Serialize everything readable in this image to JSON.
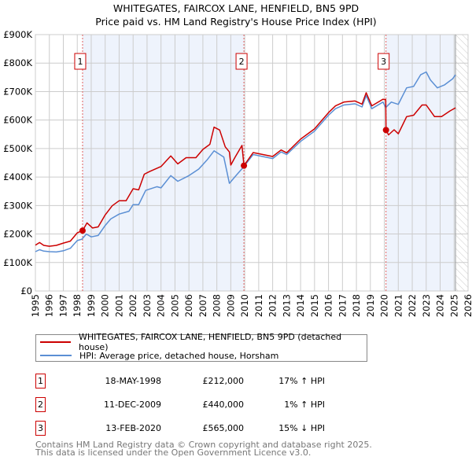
{
  "title_line1": "WHITEGATES, FAIRCOX LANE, HENFIELD, BN5 9PD",
  "title_line2": "Price paid vs. HM Land Registry's House Price Index (HPI)",
  "colors": {
    "property": "#cc0000",
    "hpi": "#5b8fd4",
    "shade": "#eef3fc",
    "grid": "#cccccc"
  },
  "legend": [
    {
      "label": "WHITEGATES, FAIRCOX LANE, HENFIELD, BN5 9PD (detached house)"
    },
    {
      "label": "HPI: Average price, detached house, Horsham"
    }
  ],
  "transactions": [
    {
      "num": "1",
      "date": "18-MAY-1998",
      "price": "£212,000",
      "hpi": "17% ↑ HPI"
    },
    {
      "num": "2",
      "date": "11-DEC-2009",
      "price": "£440,000",
      "hpi": "1% ↑ HPI"
    },
    {
      "num": "3",
      "date": "13-FEB-2020",
      "price": "£565,000",
      "hpi": "15% ↓ HPI"
    }
  ],
  "footer1": "Contains HM Land Registry data © Crown copyright and database right 2025.",
  "footer2": "This data is licensed under the Open Government Licence v3.0.",
  "chart_data": {
    "type": "line",
    "title": "WHITEGATES, FAIRCOX LANE, HENFIELD, BN5 9PD — Price paid vs. HM Land Registry's House Price Index (HPI)",
    "xlim": [
      1995,
      2026
    ],
    "ylim": [
      0,
      900000
    ],
    "x_ticks": [
      "1995",
      "1996",
      "1997",
      "1998",
      "1999",
      "2000",
      "2001",
      "2002",
      "2003",
      "2004",
      "2005",
      "2006",
      "2007",
      "2008",
      "2009",
      "2010",
      "2011",
      "2012",
      "2013",
      "2014",
      "2015",
      "2016",
      "2017",
      "2018",
      "2019",
      "2020",
      "2021",
      "2022",
      "2023",
      "2024",
      "2025",
      "2026"
    ],
    "y_ticks": [
      {
        "value": 0,
        "label": "£0"
      },
      {
        "value": 100000,
        "label": "£100K"
      },
      {
        "value": 200000,
        "label": "£200K"
      },
      {
        "value": 300000,
        "label": "£300K"
      },
      {
        "value": 400000,
        "label": "£400K"
      },
      {
        "value": 500000,
        "label": "£500K"
      },
      {
        "value": 600000,
        "label": "£600K"
      },
      {
        "value": 700000,
        "label": "£700K"
      },
      {
        "value": 800000,
        "label": "£800K"
      },
      {
        "value": 900000,
        "label": "£900K"
      }
    ],
    "grid": true,
    "shaded_periods": [
      [
        1998.38,
        2009.94
      ],
      [
        2020.12,
        2025.1
      ]
    ],
    "data_end": 2025.1,
    "sales": [
      {
        "label": "1",
        "x": 1998.38,
        "y": 212000
      },
      {
        "label": "2",
        "x": 2009.94,
        "y": 440000
      },
      {
        "label": "3",
        "x": 2020.12,
        "y": 565000
      }
    ],
    "series": [
      {
        "name": "WHITEGATES, FAIRCOX LANE, HENFIELD, BN5 9PD (detached house)",
        "color": "#cc0000",
        "points": [
          [
            1995,
            161000
          ],
          [
            1995.3,
            170000
          ],
          [
            1995.6,
            160000
          ],
          [
            1996,
            157000
          ],
          [
            1996.5,
            160000
          ],
          [
            1997,
            168000
          ],
          [
            1997.5,
            175000
          ],
          [
            1998,
            204000
          ],
          [
            1998.38,
            212000
          ],
          [
            1998.7,
            239000
          ],
          [
            1999.1,
            221000
          ],
          [
            1999.5,
            225000
          ],
          [
            2000,
            267000
          ],
          [
            2000.5,
            299000
          ],
          [
            2001,
            317000
          ],
          [
            2001.5,
            317000
          ],
          [
            2002,
            359000
          ],
          [
            2002.4,
            355000
          ],
          [
            2002.8,
            410000
          ],
          [
            2003.2,
            420000
          ],
          [
            2004,
            437000
          ],
          [
            2004.7,
            474000
          ],
          [
            2005.2,
            446000
          ],
          [
            2005.8,
            468000
          ],
          [
            2006.5,
            468000
          ],
          [
            2007,
            497000
          ],
          [
            2007.5,
            515000
          ],
          [
            2007.8,
            575000
          ],
          [
            2008.2,
            565000
          ],
          [
            2008.6,
            506000
          ],
          [
            2008.9,
            488000
          ],
          [
            2009.0,
            442000
          ],
          [
            2009.3,
            469000
          ],
          [
            2009.8,
            511000
          ],
          [
            2009.94,
            440000
          ],
          [
            2010.6,
            486000
          ],
          [
            2012,
            472000
          ],
          [
            2012.6,
            495000
          ],
          [
            2013,
            485000
          ],
          [
            2014,
            533000
          ],
          [
            2015,
            569000
          ],
          [
            2016,
            626000
          ],
          [
            2016.5,
            650000
          ],
          [
            2017.1,
            663000
          ],
          [
            2017.9,
            667000
          ],
          [
            2018.4,
            656000
          ],
          [
            2018.7,
            696000
          ],
          [
            2019.1,
            650000
          ],
          [
            2019.9,
            673000
          ],
          [
            2020.1,
            672000
          ],
          [
            2020.12,
            565000
          ],
          [
            2020.3,
            548000
          ],
          [
            2020.7,
            566000
          ],
          [
            2021,
            552000
          ],
          [
            2021.6,
            612000
          ],
          [
            2022.1,
            617000
          ],
          [
            2022.7,
            653000
          ],
          [
            2023,
            653000
          ],
          [
            2023.6,
            612000
          ],
          [
            2024.1,
            612000
          ],
          [
            2024.7,
            632000
          ],
          [
            2025.1,
            643000
          ]
        ]
      },
      {
        "name": "HPI: Average price, detached house, Horsham",
        "color": "#5b8fd4",
        "points": [
          [
            1995,
            138000
          ],
          [
            1995.3,
            145000
          ],
          [
            1995.6,
            140000
          ],
          [
            1996,
            138000
          ],
          [
            1996.5,
            137000
          ],
          [
            1997,
            141000
          ],
          [
            1997.5,
            150000
          ],
          [
            1998,
            177000
          ],
          [
            1998.33,
            182000
          ],
          [
            1998.65,
            200000
          ],
          [
            1999,
            190000
          ],
          [
            1999.5,
            195000
          ],
          [
            2000,
            230000
          ],
          [
            2000.4,
            253000
          ],
          [
            2001,
            270000
          ],
          [
            2001.7,
            280000
          ],
          [
            2002,
            303000
          ],
          [
            2002.4,
            303000
          ],
          [
            2002.9,
            353000
          ],
          [
            2003.7,
            366000
          ],
          [
            2004,
            362000
          ],
          [
            2004.7,
            405000
          ],
          [
            2005.2,
            385000
          ],
          [
            2006,
            405000
          ],
          [
            2006.7,
            428000
          ],
          [
            2007.3,
            460000
          ],
          [
            2007.8,
            492000
          ],
          [
            2008.5,
            470000
          ],
          [
            2008.9,
            378000
          ],
          [
            2009.37,
            405000
          ],
          [
            2009.94,
            437000
          ],
          [
            2010.6,
            479000
          ],
          [
            2012,
            465000
          ],
          [
            2012.6,
            488000
          ],
          [
            2013,
            479000
          ],
          [
            2014,
            525000
          ],
          [
            2015,
            561000
          ],
          [
            2016,
            617000
          ],
          [
            2016.5,
            640000
          ],
          [
            2017.1,
            653000
          ],
          [
            2017.9,
            657000
          ],
          [
            2018.4,
            646000
          ],
          [
            2018.7,
            686000
          ],
          [
            2019.1,
            640000
          ],
          [
            2019.9,
            663000
          ],
          [
            2020.1,
            644000
          ],
          [
            2020.5,
            663000
          ],
          [
            2021,
            655000
          ],
          [
            2021.6,
            713000
          ],
          [
            2022.1,
            718000
          ],
          [
            2022.6,
            759000
          ],
          [
            2023,
            769000
          ],
          [
            2023.3,
            741000
          ],
          [
            2023.8,
            713000
          ],
          [
            2024.3,
            723000
          ],
          [
            2024.9,
            745000
          ],
          [
            2025.1,
            759000
          ]
        ]
      }
    ]
  }
}
